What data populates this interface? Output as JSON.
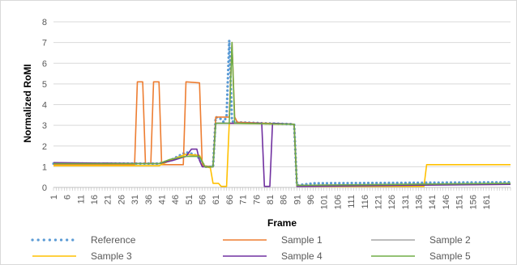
{
  "chart_data": {
    "type": "line",
    "title": "",
    "xlabel": "Frame",
    "ylabel": "Normalized RoMI",
    "ylim": [
      0,
      8
    ],
    "yticks": [
      0,
      1,
      2,
      3,
      4,
      5,
      6,
      7,
      8
    ],
    "xlim": [
      1,
      170
    ],
    "xtick_labels": [
      "1",
      "6",
      "11",
      "16",
      "21",
      "26",
      "31",
      "36",
      "41",
      "46",
      "51",
      "56",
      "61",
      "66",
      "71",
      "76",
      "81",
      "86",
      "91",
      "96",
      "101",
      "106",
      "111",
      "116",
      "121",
      "126",
      "131",
      "136",
      "141",
      "146",
      "151",
      "156",
      "161"
    ],
    "grid": "horizontal",
    "legend_position": "bottom",
    "series": [
      {
        "name": "Reference",
        "color": "#5b9bd5",
        "style": "dotted",
        "points": [
          [
            1,
            1.15
          ],
          [
            30,
            1.15
          ],
          [
            40,
            1.15
          ],
          [
            44,
            1.3
          ],
          [
            50,
            1.7
          ],
          [
            53,
            1.6
          ],
          [
            55,
            1.4
          ],
          [
            57,
            1.0
          ],
          [
            60,
            1.0
          ],
          [
            61,
            3.4
          ],
          [
            63,
            3.3
          ],
          [
            64,
            3.15
          ],
          [
            65,
            3.45
          ],
          [
            66,
            7.1
          ],
          [
            67,
            3.2
          ],
          [
            68,
            3.15
          ],
          [
            90,
            3.05
          ],
          [
            91,
            0.1
          ],
          [
            97,
            0.2
          ],
          [
            170,
            0.25
          ]
        ]
      },
      {
        "name": "Sample 1",
        "color": "#ed7d31",
        "style": "solid",
        "points": [
          [
            1,
            1.1
          ],
          [
            31,
            1.1
          ],
          [
            32,
            5.1
          ],
          [
            34,
            5.1
          ],
          [
            35,
            1.15
          ],
          [
            37,
            1.15
          ],
          [
            38,
            5.1
          ],
          [
            40,
            5.1
          ],
          [
            41,
            1.1
          ],
          [
            49,
            1.1
          ],
          [
            50,
            5.1
          ],
          [
            55,
            5.05
          ],
          [
            56,
            1.05
          ],
          [
            60,
            1.0
          ],
          [
            61,
            3.4
          ],
          [
            66,
            3.4
          ],
          [
            67,
            7.0
          ],
          [
            68,
            3.4
          ],
          [
            69,
            3.15
          ],
          [
            90,
            3.05
          ],
          [
            91,
            0.1
          ],
          [
            170,
            0.15
          ]
        ]
      },
      {
        "name": "Sample 2",
        "color": "#a5a5a5",
        "style": "solid",
        "points": [
          [
            1,
            1.15
          ],
          [
            40,
            1.15
          ],
          [
            50,
            1.6
          ],
          [
            55,
            1.5
          ],
          [
            57,
            1.0
          ],
          [
            60,
            1.0
          ],
          [
            61,
            3.1
          ],
          [
            90,
            3.05
          ],
          [
            91,
            0.1
          ],
          [
            170,
            0.2
          ]
        ]
      },
      {
        "name": "Sample 3",
        "color": "#ffc000",
        "style": "solid",
        "points": [
          [
            1,
            1.05
          ],
          [
            40,
            1.05
          ],
          [
            45,
            1.35
          ],
          [
            50,
            1.6
          ],
          [
            55,
            1.55
          ],
          [
            57,
            1.0
          ],
          [
            59,
            0.95
          ],
          [
            60,
            0.2
          ],
          [
            62,
            0.2
          ],
          [
            63,
            0.05
          ],
          [
            65,
            0.05
          ],
          [
            66,
            3.1
          ],
          [
            90,
            3.05
          ],
          [
            91,
            0.05
          ],
          [
            138,
            0.05
          ],
          [
            139,
            1.1
          ],
          [
            170,
            1.1
          ]
        ]
      },
      {
        "name": "Sample 4",
        "color": "#7030a0",
        "style": "solid",
        "points": [
          [
            1,
            1.2
          ],
          [
            40,
            1.15
          ],
          [
            45,
            1.3
          ],
          [
            50,
            1.5
          ],
          [
            52,
            1.85
          ],
          [
            54,
            1.85
          ],
          [
            55,
            1.3
          ],
          [
            56,
            1.0
          ],
          [
            60,
            1.0
          ],
          [
            61,
            3.1
          ],
          [
            78,
            3.1
          ],
          [
            79,
            0.05
          ],
          [
            81,
            0.05
          ],
          [
            82,
            3.1
          ],
          [
            90,
            3.05
          ],
          [
            91,
            0.05
          ],
          [
            170,
            0.15
          ]
        ]
      },
      {
        "name": "Sample 5",
        "color": "#70ad47",
        "style": "solid",
        "points": [
          [
            1,
            1.15
          ],
          [
            40,
            1.15
          ],
          [
            44,
            1.35
          ],
          [
            50,
            1.5
          ],
          [
            55,
            1.5
          ],
          [
            57,
            1.0
          ],
          [
            60,
            1.0
          ],
          [
            61,
            3.1
          ],
          [
            66,
            3.1
          ],
          [
            67,
            7.0
          ],
          [
            68,
            3.1
          ],
          [
            90,
            3.05
          ],
          [
            91,
            0.1
          ],
          [
            170,
            0.2
          ]
        ]
      }
    ]
  }
}
